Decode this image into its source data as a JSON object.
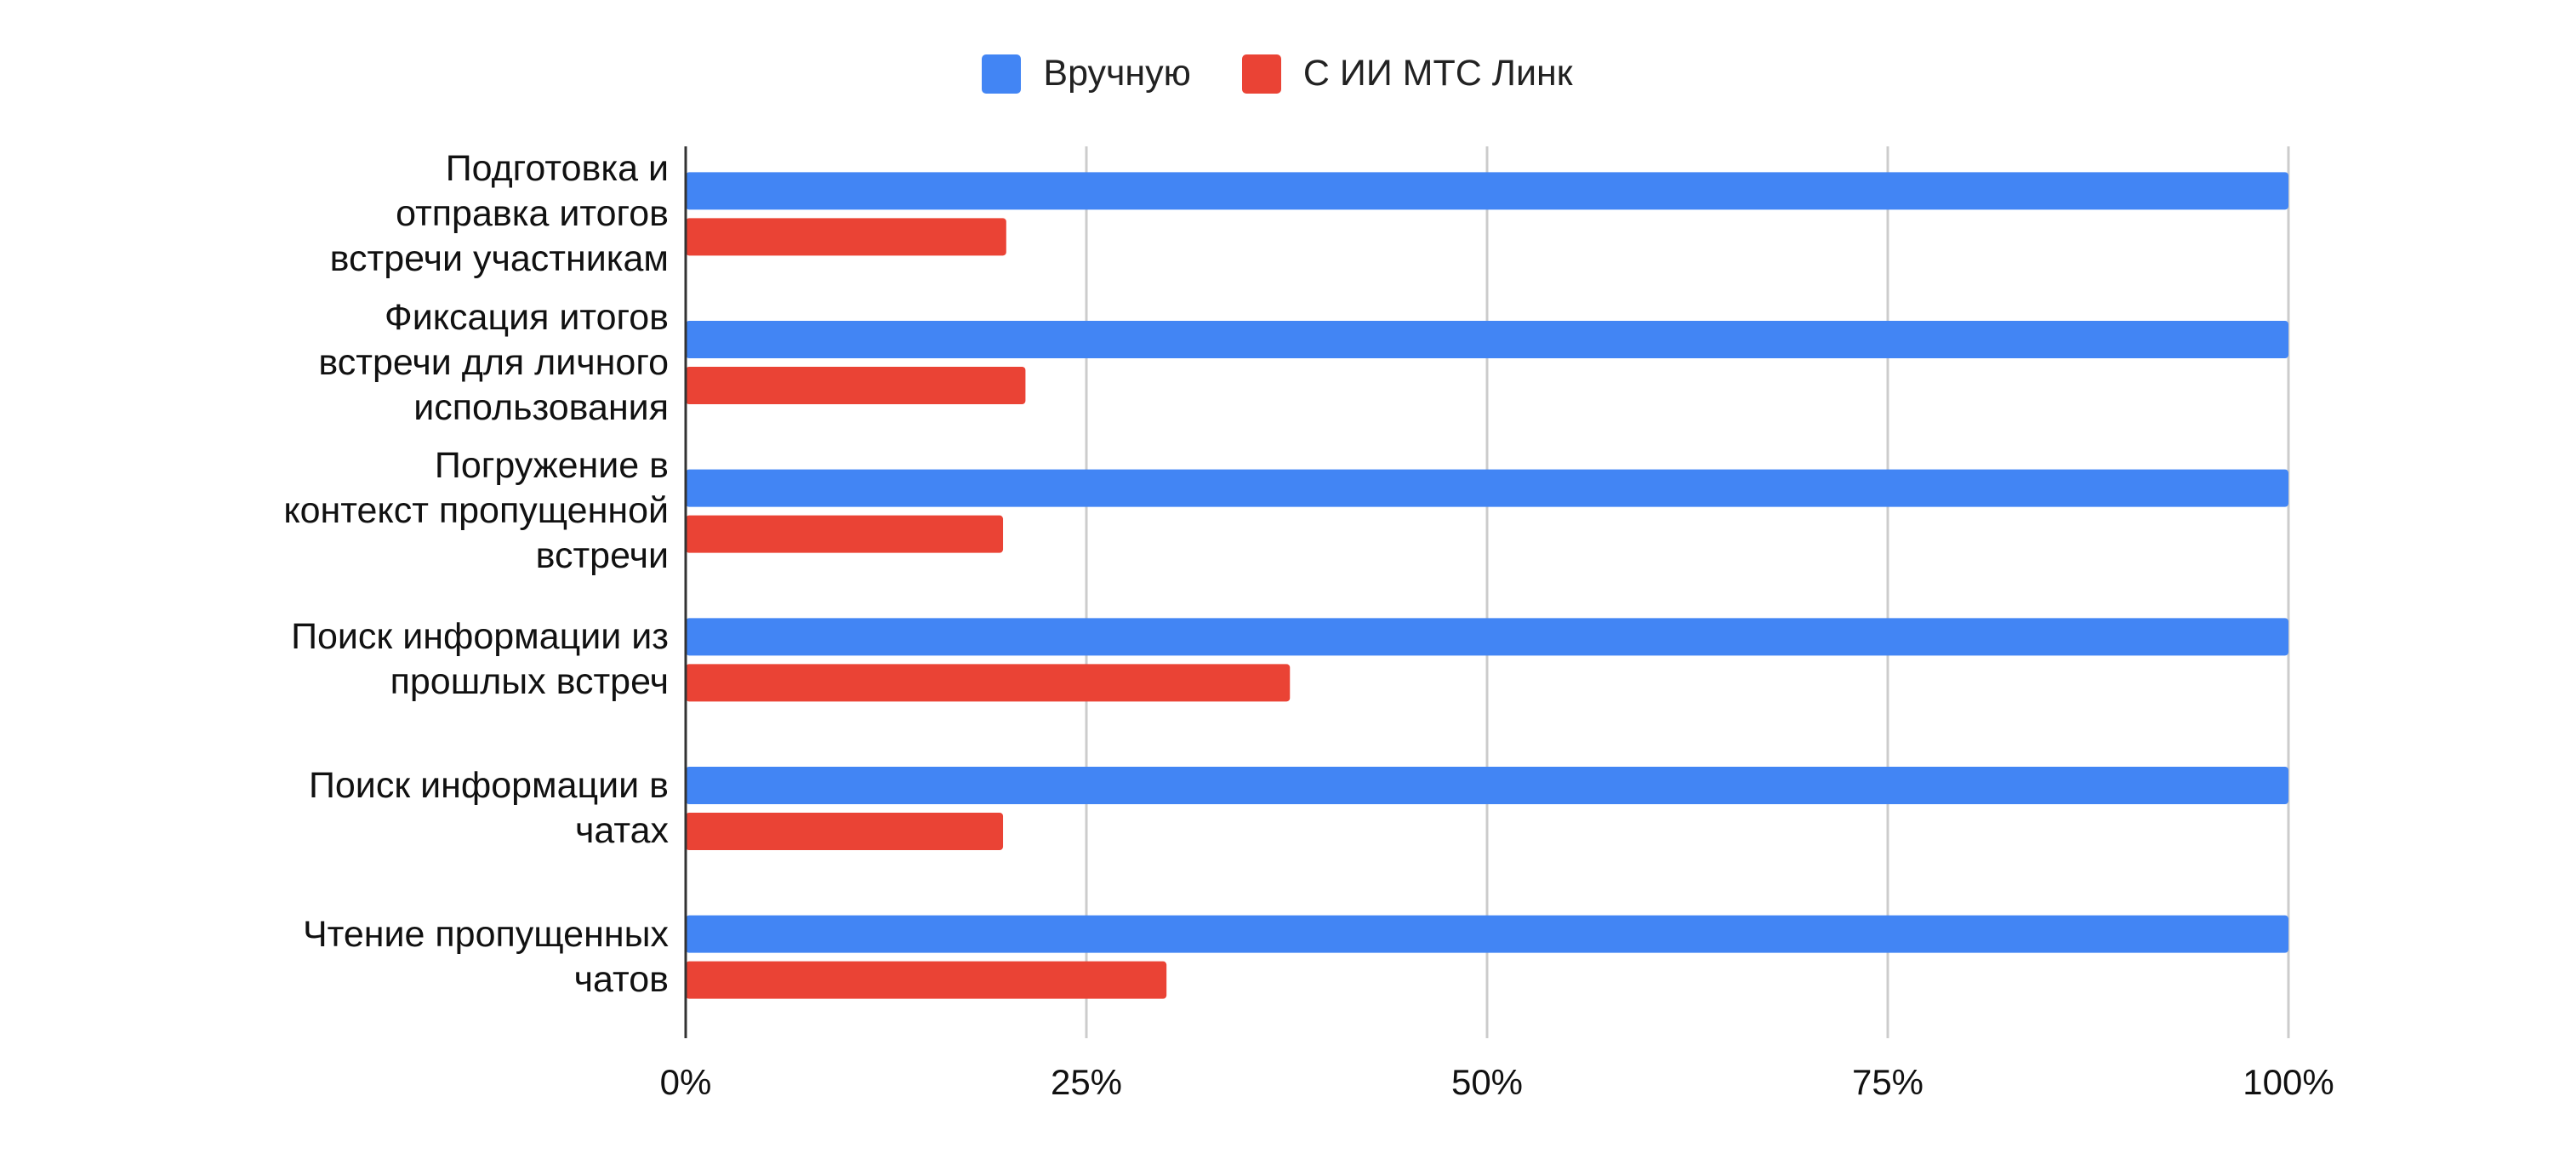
{
  "colors": {
    "series_1": "#4285F4",
    "series_2": "#EA4335",
    "grid": "#CCCCCC",
    "axis": "#333333"
  },
  "chart_data": {
    "type": "bar",
    "orientation": "horizontal",
    "categories": [
      "Подготовка и\nотправка итогов\nвстречи участникам",
      "Фиксация итогов\nвстречи для личного\nиспользования",
      "Погружение в\nконтекст пропущенной\nвстречи",
      "Поиск информации из\nпрошлых встреч",
      "Поиск информации в\nчатах",
      "Чтение пропущенных\nчатов"
    ],
    "series": [
      {
        "name": "Вручную",
        "values": [
          100,
          100,
          100,
          100,
          100,
          100
        ]
      },
      {
        "name": "С ИИ МТС Линк",
        "values": [
          20,
          21.2,
          19.8,
          37.7,
          19.8,
          30
        ]
      }
    ],
    "x_ticks": [
      "0%",
      "25%",
      "50%",
      "75%",
      "100%"
    ],
    "xlim": [
      0,
      100
    ],
    "grid": true,
    "legend_position": "top-center",
    "title": "",
    "xlabel": "",
    "ylabel": ""
  }
}
